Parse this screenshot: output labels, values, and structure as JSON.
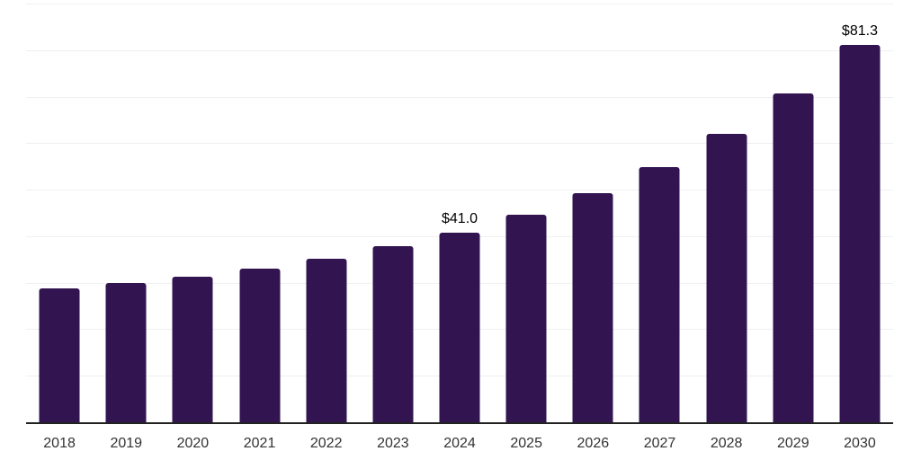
{
  "chart_data": {
    "type": "bar",
    "title": "",
    "xlabel": "",
    "ylabel": "",
    "categories": [
      "2018",
      "2019",
      "2020",
      "2021",
      "2022",
      "2023",
      "2024",
      "2025",
      "2026",
      "2027",
      "2028",
      "2029",
      "2030"
    ],
    "values": [
      28.9,
      30.1,
      31.5,
      33.2,
      35.3,
      38.0,
      41.0,
      44.8,
      49.5,
      55.1,
      62.1,
      70.9,
      81.3
    ],
    "data_labels": [
      "",
      "",
      "",
      "",
      "",
      "",
      "$41.0",
      "",
      "",
      "",
      "",
      "",
      "$81.3"
    ],
    "ylim": [
      0,
      90
    ],
    "gridline_step": 10,
    "grid": true,
    "legend": false,
    "colors": {
      "bar": "#321450",
      "gridline": "#f0f0f0",
      "axis_line": "#222222",
      "tick_label": "#333333",
      "data_label": "#000000",
      "background": "#ffffff"
    }
  }
}
